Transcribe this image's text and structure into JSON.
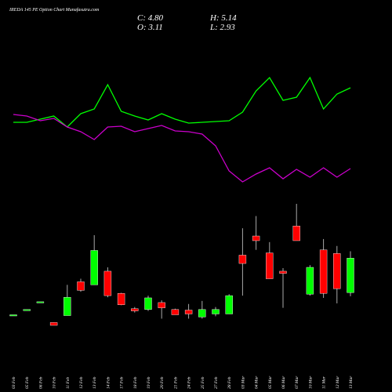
{
  "chart_data": {
    "type": "candlestick",
    "title": "IREDA 145 PE Option Chart Munafasutra.com",
    "close_label": "C: 4.80",
    "high_label": "H: 5.14",
    "open_label": "O: 3.11",
    "low_label": "L: 2.93",
    "categories": [
      "03 Feb",
      "05 Feb",
      "06 Feb",
      "10 Feb",
      "11 Feb",
      "12 Feb",
      "13 Feb",
      "14 Feb",
      "17 Feb",
      "18 Feb",
      "19 Feb",
      "20 Feb",
      "21 Feb",
      "24 Feb",
      "25 Feb",
      "27 Feb",
      "28 Feb",
      "03 Mar",
      "04 Mar",
      "05 Mar",
      "06 Mar",
      "07 Mar",
      "10 Mar",
      "11 Mar",
      "12 Mar",
      "13 Mar"
    ],
    "open": [
      2.02,
      2.28,
      2.66,
      1.64,
      1.98,
      3.64,
      3.49,
      4.16,
      3.07,
      2.32,
      2.28,
      2.62,
      2.28,
      2.25,
      1.91,
      2.06,
      2.06,
      4.95,
      5.89,
      5.06,
      4.16,
      6.38,
      3.03,
      5.21,
      5.03,
      3.11
    ],
    "high": [
      2.02,
      2.28,
      2.66,
      1.64,
      3.49,
      3.79,
      5.93,
      4.35,
      3.1,
      2.4,
      2.96,
      2.73,
      2.32,
      2.55,
      2.7,
      2.4,
      3.03,
      6.27,
      6.87,
      5.59,
      4.31,
      7.47,
      4.46,
      5.74,
      5.4,
      5.14
    ],
    "low": [
      2.02,
      2.28,
      2.66,
      1.5,
      1.98,
      3.15,
      3.49,
      2.88,
      2.49,
      2.13,
      2.21,
      1.83,
      2.02,
      1.83,
      1.83,
      1.95,
      2.06,
      2.96,
      5.21,
      3.79,
      2.36,
      5.66,
      2.96,
      2.85,
      2.58,
      2.93
    ],
    "close": [
      2.02,
      2.28,
      2.66,
      1.5,
      2.88,
      3.22,
      5.18,
      2.96,
      2.51,
      2.21,
      2.85,
      2.36,
      2.02,
      2.06,
      2.28,
      2.28,
      2.96,
      4.54,
      5.66,
      3.79,
      4.05,
      5.66,
      4.35,
      3.07,
      3.3,
      4.8
    ],
    "up_color": "#00ff00",
    "down_color": "#ff0000",
    "lines": [
      {
        "color": "#00ff00",
        "values": [
          144,
          144,
          148,
          152,
          138,
          155,
          161,
          192,
          158,
          152,
          147,
          155,
          148,
          143,
          144,
          145,
          146,
          157,
          184,
          201,
          172,
          176,
          201,
          161,
          180,
          188
        ]
      },
      {
        "color": "#cc00cc",
        "values": [
          154,
          152,
          146,
          149,
          138,
          132,
          122,
          138,
          139,
          132,
          136,
          140,
          133,
          132,
          129,
          114,
          82,
          68,
          78,
          86,
          72,
          84,
          74,
          86,
          74,
          85
        ]
      }
    ]
  }
}
